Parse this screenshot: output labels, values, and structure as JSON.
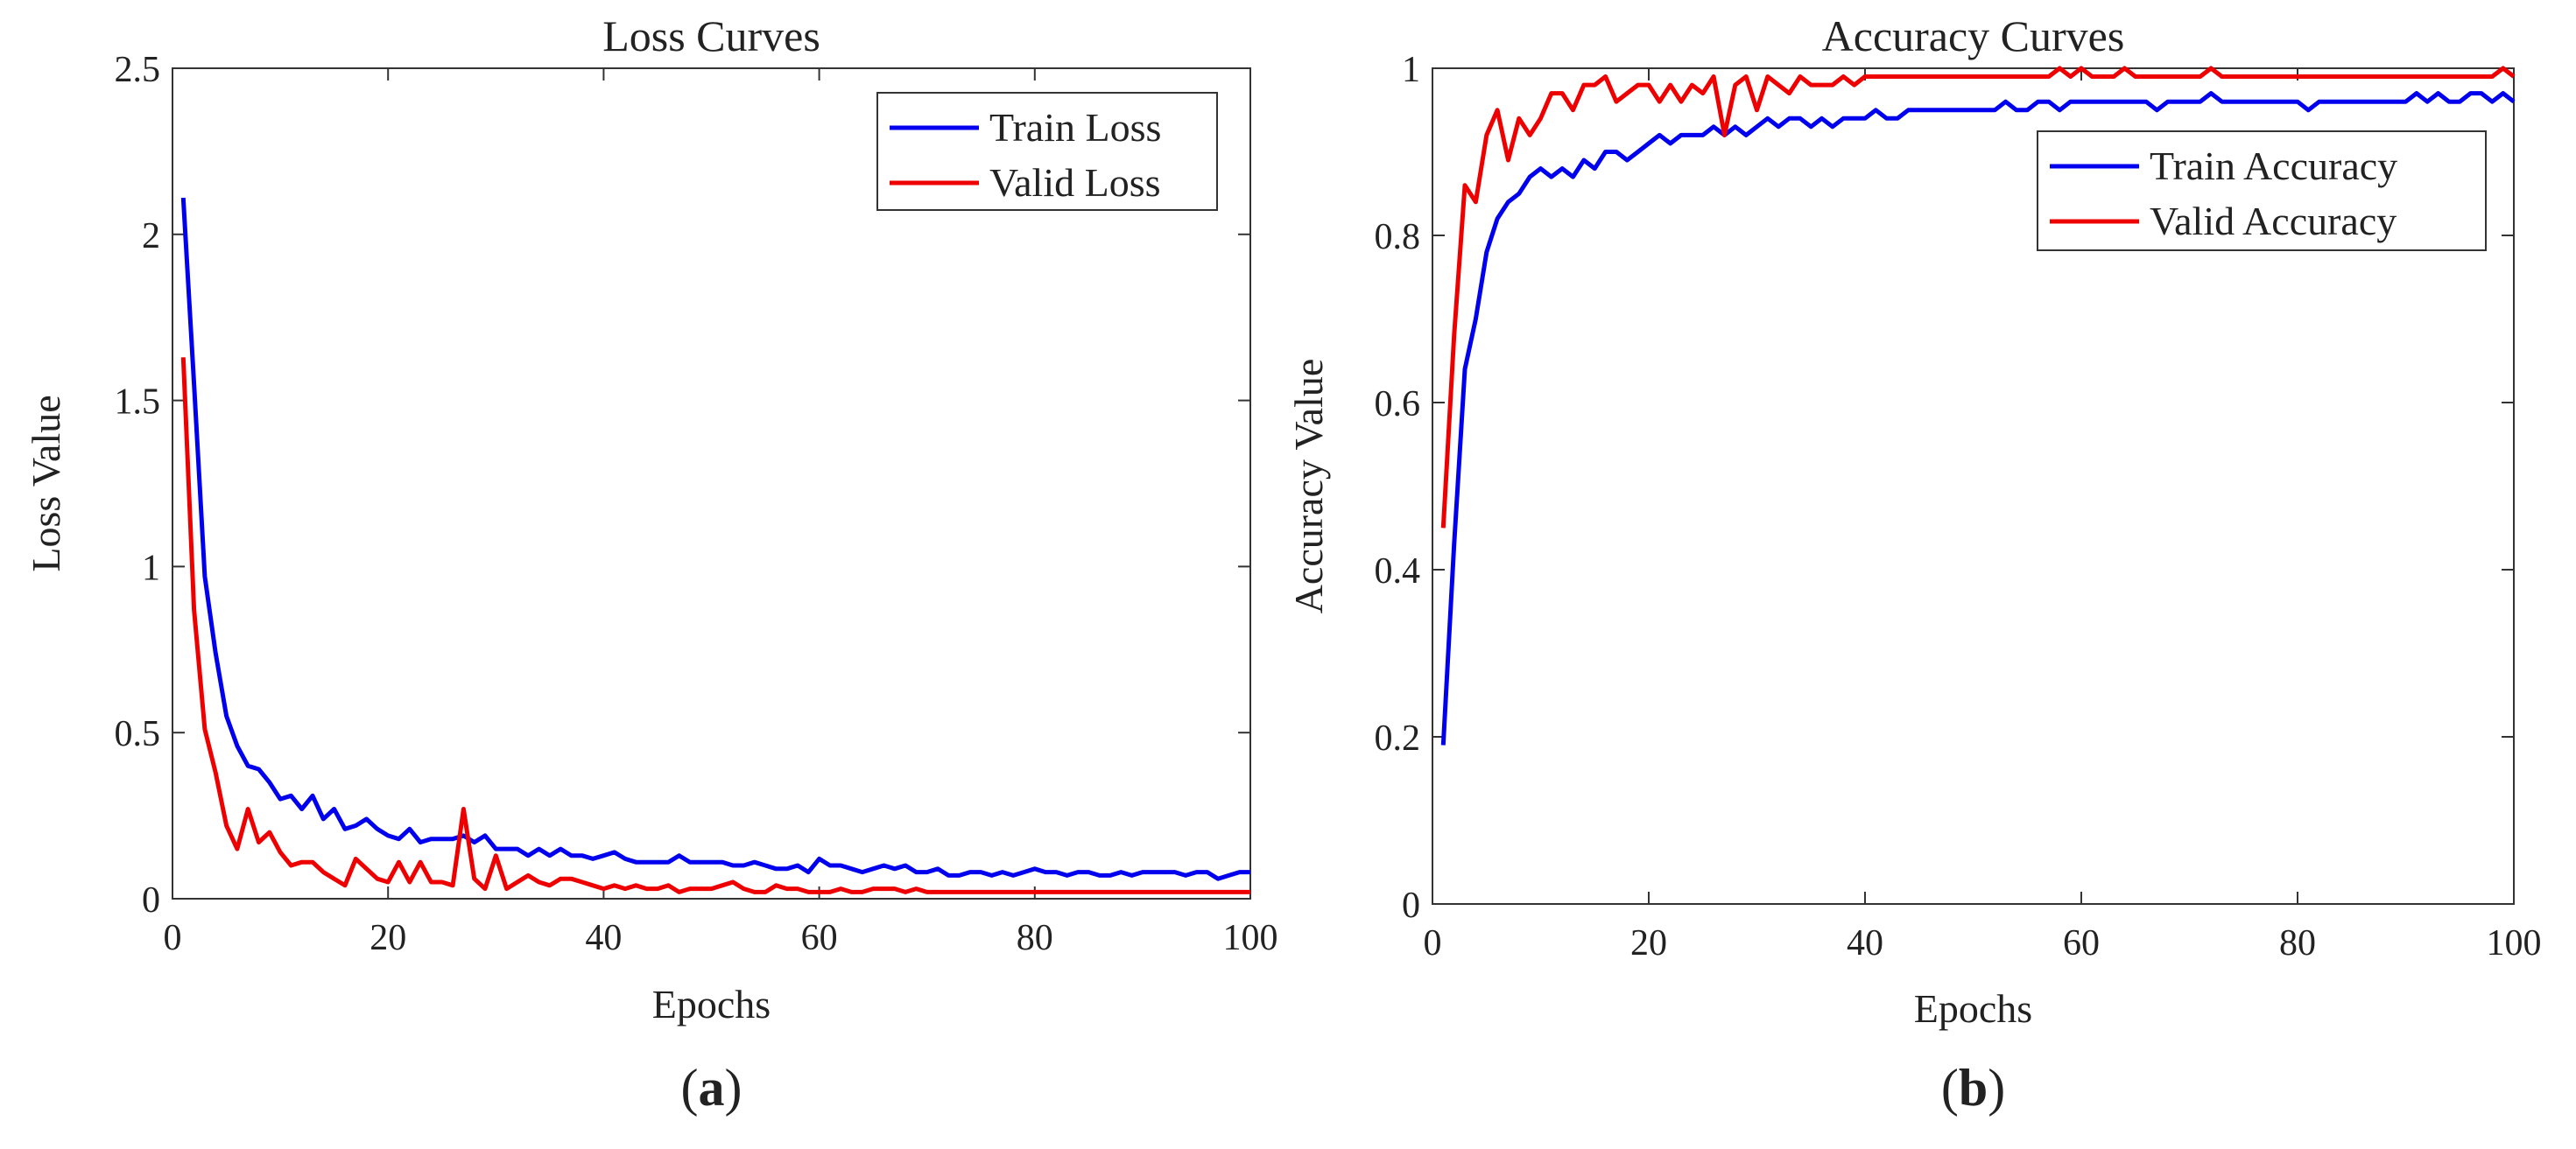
{
  "colors": {
    "train": "#0000ee",
    "valid": "#ee0000",
    "axis": "#333333"
  },
  "chart_data": [
    {
      "type": "line",
      "panel_label": "a",
      "title": "Loss Curves",
      "xlabel": "Epochs",
      "ylabel": "Loss Value",
      "xlim": [
        0,
        100
      ],
      "ylim": [
        0,
        2.5
      ],
      "xticks": [
        0,
        20,
        40,
        60,
        80,
        100
      ],
      "xtick_labels": [
        "0",
        "20",
        "40",
        "60",
        "80",
        "100"
      ],
      "yticks": [
        0,
        0.5,
        1,
        1.5,
        2,
        2.5
      ],
      "ytick_labels": [
        "0",
        "0.5",
        "1",
        "1.5",
        "2",
        "2.5"
      ],
      "grid": false,
      "legend_position": "top-right",
      "x": [
        1,
        2,
        3,
        4,
        5,
        6,
        7,
        8,
        9,
        10,
        11,
        12,
        13,
        14,
        15,
        16,
        17,
        18,
        19,
        20,
        21,
        22,
        23,
        24,
        25,
        26,
        27,
        28,
        29,
        30,
        31,
        32,
        33,
        34,
        35,
        36,
        37,
        38,
        39,
        40,
        41,
        42,
        43,
        44,
        45,
        46,
        47,
        48,
        49,
        50,
        51,
        52,
        53,
        54,
        55,
        56,
        57,
        58,
        59,
        60,
        61,
        62,
        63,
        64,
        65,
        66,
        67,
        68,
        69,
        70,
        71,
        72,
        73,
        74,
        75,
        76,
        77,
        78,
        79,
        80,
        81,
        82,
        83,
        84,
        85,
        86,
        87,
        88,
        89,
        90,
        91,
        92,
        93,
        94,
        95,
        96,
        97,
        98,
        99,
        100
      ],
      "series": [
        {
          "name": "Train Loss",
          "color": "#0000ee",
          "values": [
            2.11,
            1.55,
            0.97,
            0.74,
            0.55,
            0.46,
            0.4,
            0.39,
            0.35,
            0.3,
            0.31,
            0.27,
            0.31,
            0.24,
            0.27,
            0.21,
            0.22,
            0.24,
            0.21,
            0.19,
            0.18,
            0.21,
            0.17,
            0.18,
            0.18,
            0.18,
            0.19,
            0.17,
            0.19,
            0.15,
            0.15,
            0.15,
            0.13,
            0.15,
            0.13,
            0.15,
            0.13,
            0.13,
            0.12,
            0.13,
            0.14,
            0.12,
            0.11,
            0.11,
            0.11,
            0.11,
            0.13,
            0.11,
            0.11,
            0.11,
            0.11,
            0.1,
            0.1,
            0.11,
            0.1,
            0.09,
            0.09,
            0.1,
            0.08,
            0.12,
            0.1,
            0.1,
            0.09,
            0.08,
            0.09,
            0.1,
            0.09,
            0.1,
            0.08,
            0.08,
            0.09,
            0.07,
            0.07,
            0.08,
            0.08,
            0.07,
            0.08,
            0.07,
            0.08,
            0.09,
            0.08,
            0.08,
            0.07,
            0.08,
            0.08,
            0.07,
            0.07,
            0.08,
            0.07,
            0.08,
            0.08,
            0.08,
            0.08,
            0.07,
            0.08,
            0.08,
            0.06,
            0.07,
            0.08,
            0.08
          ]
        },
        {
          "name": "Valid Loss",
          "color": "#ee0000",
          "values": [
            1.63,
            0.87,
            0.51,
            0.38,
            0.22,
            0.15,
            0.27,
            0.17,
            0.2,
            0.14,
            0.1,
            0.11,
            0.11,
            0.08,
            0.06,
            0.04,
            0.12,
            0.09,
            0.06,
            0.05,
            0.11,
            0.05,
            0.11,
            0.05,
            0.05,
            0.04,
            0.27,
            0.06,
            0.03,
            0.13,
            0.03,
            0.05,
            0.07,
            0.05,
            0.04,
            0.06,
            0.06,
            0.05,
            0.04,
            0.03,
            0.04,
            0.03,
            0.04,
            0.03,
            0.03,
            0.04,
            0.02,
            0.03,
            0.03,
            0.03,
            0.04,
            0.05,
            0.03,
            0.02,
            0.02,
            0.04,
            0.03,
            0.03,
            0.02,
            0.02,
            0.02,
            0.03,
            0.02,
            0.02,
            0.03,
            0.03,
            0.03,
            0.02,
            0.03,
            0.02,
            0.02,
            0.02,
            0.02,
            0.02,
            0.02,
            0.02,
            0.02,
            0.02,
            0.02,
            0.02,
            0.02,
            0.02,
            0.02,
            0.02,
            0.02,
            0.02,
            0.02,
            0.02,
            0.02,
            0.02,
            0.02,
            0.02,
            0.02,
            0.02,
            0.02,
            0.02,
            0.02,
            0.02,
            0.02,
            0.02
          ]
        }
      ]
    },
    {
      "type": "line",
      "panel_label": "b",
      "title": "Accuracy Curves",
      "xlabel": "Epochs",
      "ylabel": "Accuracy Value",
      "xlim": [
        0,
        100
      ],
      "ylim": [
        0,
        1
      ],
      "xticks": [
        0,
        20,
        40,
        60,
        80,
        100
      ],
      "xtick_labels": [
        "0",
        "20",
        "40",
        "60",
        "80",
        "100"
      ],
      "yticks": [
        0,
        0.2,
        0.4,
        0.6,
        0.8,
        1
      ],
      "ytick_labels": [
        "0",
        "0.2",
        "0.4",
        "0.6",
        "0.8",
        "1"
      ],
      "grid": false,
      "legend_position": "top-right",
      "x": [
        1,
        2,
        3,
        4,
        5,
        6,
        7,
        8,
        9,
        10,
        11,
        12,
        13,
        14,
        15,
        16,
        17,
        18,
        19,
        20,
        21,
        22,
        23,
        24,
        25,
        26,
        27,
        28,
        29,
        30,
        31,
        32,
        33,
        34,
        35,
        36,
        37,
        38,
        39,
        40,
        41,
        42,
        43,
        44,
        45,
        46,
        47,
        48,
        49,
        50,
        51,
        52,
        53,
        54,
        55,
        56,
        57,
        58,
        59,
        60,
        61,
        62,
        63,
        64,
        65,
        66,
        67,
        68,
        69,
        70,
        71,
        72,
        73,
        74,
        75,
        76,
        77,
        78,
        79,
        80,
        81,
        82,
        83,
        84,
        85,
        86,
        87,
        88,
        89,
        90,
        91,
        92,
        93,
        94,
        95,
        96,
        97,
        98,
        99,
        100
      ],
      "series": [
        {
          "name": "Train Accuracy",
          "color": "#0000ee",
          "values": [
            0.19,
            0.43,
            0.64,
            0.7,
            0.78,
            0.82,
            0.84,
            0.85,
            0.87,
            0.88,
            0.87,
            0.88,
            0.87,
            0.89,
            0.88,
            0.9,
            0.9,
            0.89,
            0.9,
            0.91,
            0.92,
            0.91,
            0.92,
            0.92,
            0.92,
            0.93,
            0.92,
            0.93,
            0.92,
            0.93,
            0.94,
            0.93,
            0.94,
            0.94,
            0.93,
            0.94,
            0.93,
            0.94,
            0.94,
            0.94,
            0.95,
            0.94,
            0.94,
            0.95,
            0.95,
            0.95,
            0.95,
            0.95,
            0.95,
            0.95,
            0.95,
            0.95,
            0.96,
            0.95,
            0.95,
            0.96,
            0.96,
            0.95,
            0.96,
            0.96,
            0.96,
            0.96,
            0.96,
            0.96,
            0.96,
            0.96,
            0.95,
            0.96,
            0.96,
            0.96,
            0.96,
            0.97,
            0.96,
            0.96,
            0.96,
            0.96,
            0.96,
            0.96,
            0.96,
            0.96,
            0.95,
            0.96,
            0.96,
            0.96,
            0.96,
            0.96,
            0.96,
            0.96,
            0.96,
            0.96,
            0.97,
            0.96,
            0.97,
            0.96,
            0.96,
            0.97,
            0.97,
            0.96,
            0.97,
            0.96
          ]
        },
        {
          "name": "Valid Accuracy",
          "color": "#ee0000",
          "values": [
            0.45,
            0.68,
            0.86,
            0.84,
            0.92,
            0.95,
            0.89,
            0.94,
            0.92,
            0.94,
            0.97,
            0.97,
            0.95,
            0.98,
            0.98,
            0.99,
            0.96,
            0.97,
            0.98,
            0.98,
            0.96,
            0.98,
            0.96,
            0.98,
            0.97,
            0.99,
            0.92,
            0.98,
            0.99,
            0.95,
            0.99,
            0.98,
            0.97,
            0.99,
            0.98,
            0.98,
            0.98,
            0.99,
            0.98,
            0.99,
            0.99,
            0.99,
            0.99,
            0.99,
            0.99,
            0.99,
            0.99,
            0.99,
            0.99,
            0.99,
            0.99,
            0.99,
            0.99,
            0.99,
            0.99,
            0.99,
            0.99,
            1.0,
            0.99,
            1.0,
            0.99,
            0.99,
            0.99,
            1.0,
            0.99,
            0.99,
            0.99,
            0.99,
            0.99,
            0.99,
            0.99,
            1.0,
            0.99,
            0.99,
            0.99,
            0.99,
            0.99,
            0.99,
            0.99,
            0.99,
            0.99,
            0.99,
            0.99,
            0.99,
            0.99,
            0.99,
            0.99,
            0.99,
            0.99,
            0.99,
            0.99,
            0.99,
            0.99,
            0.99,
            0.99,
            0.99,
            0.99,
            0.99,
            1.0,
            0.99
          ]
        }
      ]
    }
  ]
}
